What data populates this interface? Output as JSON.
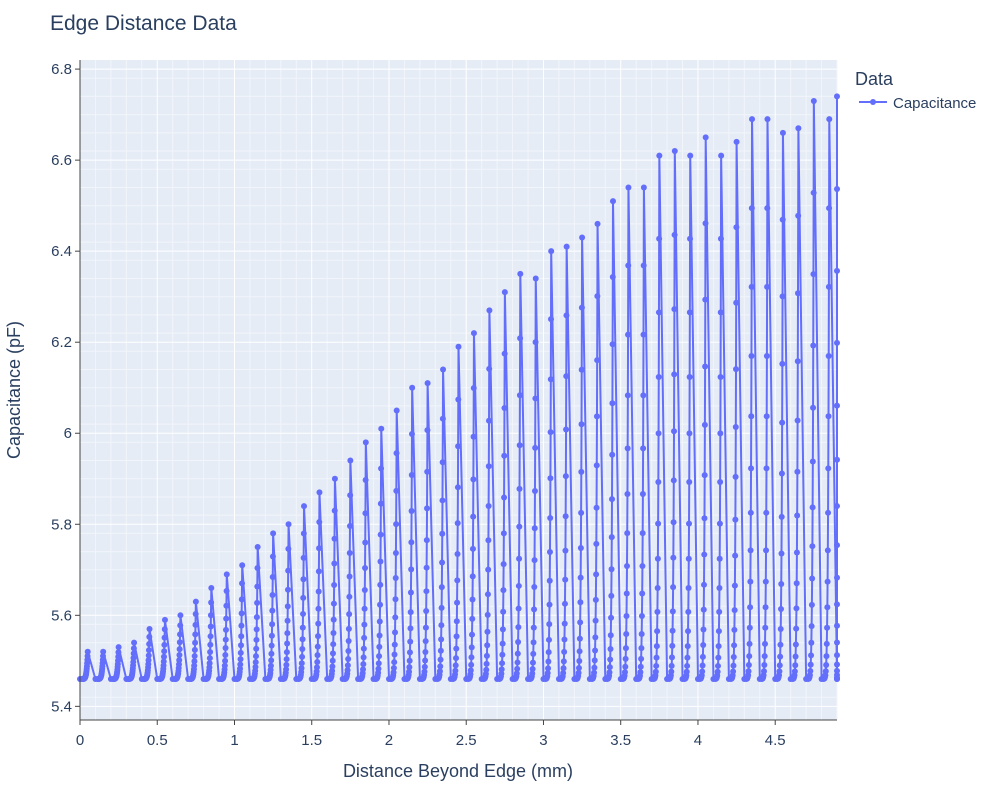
{
  "chart_data": {
    "type": "line",
    "title": "Edge Distance Data",
    "xlabel": "Distance Beyond Edge (mm)",
    "ylabel": "Capacitance (pF)",
    "xlim": [
      0,
      4.9
    ],
    "ylim": [
      5.37,
      6.82
    ],
    "x_ticks": [
      0,
      0.5,
      1,
      1.5,
      2,
      2.5,
      3,
      3.5,
      4,
      4.5
    ],
    "x_tick_labels": [
      "0",
      "0.5",
      "1",
      "1.5",
      "2",
      "2.5",
      "3",
      "3.5",
      "4",
      "4.5"
    ],
    "y_ticks": [
      5.4,
      5.6,
      5.8,
      6,
      6.2,
      6.4,
      6.6,
      6.8
    ],
    "y_tick_labels": [
      "5.4",
      "5.6",
      "5.8",
      "6",
      "6.2",
      "6.4",
      "6.6",
      "6.8"
    ],
    "grid": true,
    "legend": {
      "title": "Data",
      "position": "top-right"
    },
    "series": [
      {
        "name": "Capacitance",
        "color": "#636efa",
        "mode": "lines+markers",
        "sweep_x_start": [
          0,
          0.1,
          0.2,
          0.3,
          0.4,
          0.5,
          0.6,
          0.7,
          0.8,
          0.9,
          1.0,
          1.1,
          1.2,
          1.3,
          1.4,
          1.5,
          1.6,
          1.7,
          1.8,
          1.9,
          2.0,
          2.1,
          2.2,
          2.3,
          2.4,
          2.5,
          2.6,
          2.7,
          2.8,
          2.9,
          3.0,
          3.1,
          3.2,
          3.3,
          3.4,
          3.5,
          3.6,
          3.7,
          3.8,
          3.9,
          4.0,
          4.1,
          4.2,
          4.3,
          4.4,
          4.5,
          4.6,
          4.7,
          4.8,
          4.9
        ],
        "sweep_peak": [
          5.52,
          5.52,
          5.53,
          5.54,
          5.57,
          5.59,
          5.6,
          5.63,
          5.66,
          5.69,
          5.71,
          5.75,
          5.78,
          5.8,
          5.84,
          5.87,
          5.9,
          5.94,
          5.98,
          6.01,
          6.05,
          6.1,
          6.11,
          6.14,
          6.19,
          6.22,
          6.27,
          6.31,
          6.35,
          6.34,
          6.4,
          6.41,
          6.43,
          6.46,
          6.51,
          6.54,
          6.54,
          6.61,
          6.62,
          6.61,
          6.65,
          6.61,
          6.64,
          6.69,
          6.69,
          6.66,
          6.67,
          6.73,
          6.69,
          6.74
        ],
        "sweep_min": 5.46,
        "sweep_width": 0.05
      }
    ]
  }
}
